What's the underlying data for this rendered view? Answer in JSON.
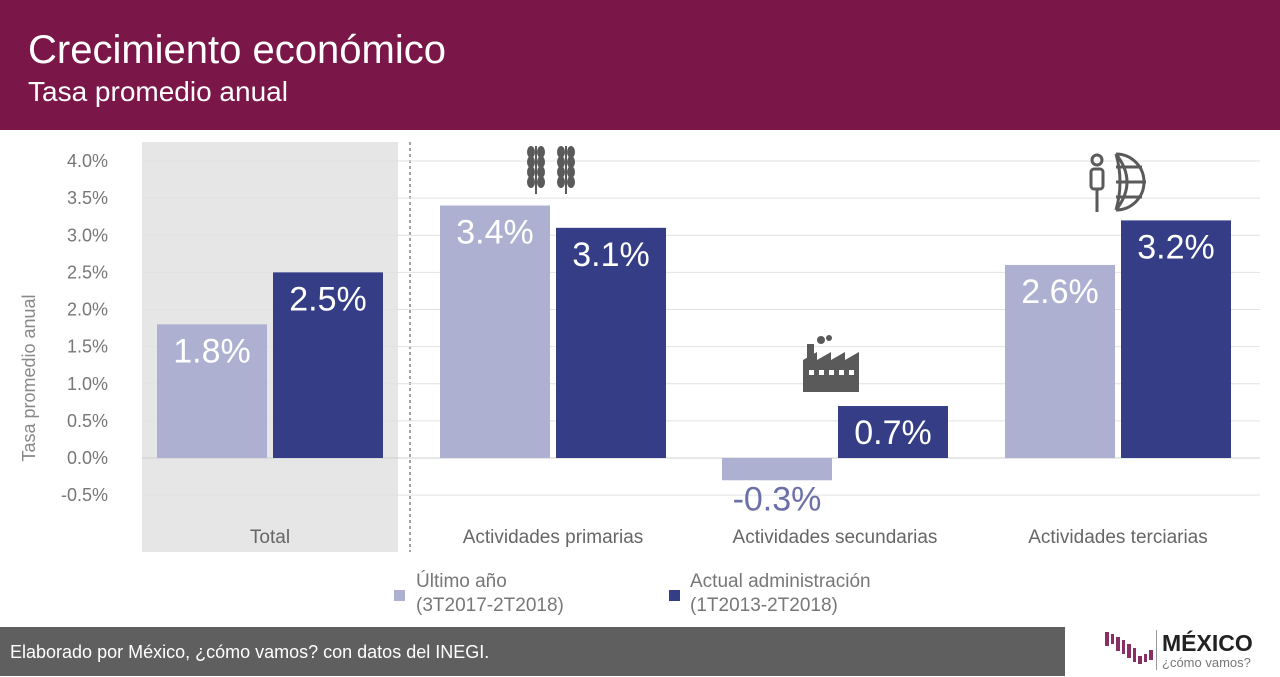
{
  "header": {
    "title": "Crecimiento económico",
    "subtitle": "Tasa promedio anual"
  },
  "footer": {
    "text": "Elaborado por México, ¿cómo vamos? con datos del INEGI."
  },
  "logo": {
    "name": "MÉXICO",
    "tagline": "¿cómo vamos?"
  },
  "colors": {
    "header": "#7b1648",
    "series1": "#adb0d1",
    "series2": "#353d86",
    "highlight_bg": "#e6e6e6",
    "footer": "#5f5f5f"
  },
  "chart_data": {
    "type": "bar",
    "ylabel": "Tasa promedio anual",
    "ylim": [
      -0.5,
      4.0
    ],
    "yticks": [
      "4.0%",
      "3.5%",
      "3.0%",
      "2.5%",
      "2.0%",
      "1.5%",
      "1.0%",
      "0.5%",
      "0.0%",
      "-0.5%"
    ],
    "categories": [
      "Total",
      "Actividades primarias",
      "Actividades secundarias",
      "Actividades terciarias"
    ],
    "category_icons": [
      "",
      "wheat-icon",
      "factory-icon",
      "person-globe-icon"
    ],
    "grid": true,
    "legend_placement": "bottom",
    "series": [
      {
        "name": "Último año (3T2017-2T2018)",
        "legend_line1": "Último año",
        "legend_line2": "(3T2017-2T2018)",
        "values": [
          1.8,
          3.4,
          -0.3,
          2.6
        ],
        "labels": [
          "1.8%",
          "3.4%",
          "-0.3%",
          "2.6%"
        ]
      },
      {
        "name": "Actual administración (1T2013-2T2018)",
        "legend_line1": "Actual administración",
        "legend_line2": "(1T2013-2T2018)",
        "values": [
          2.5,
          3.1,
          0.7,
          3.2
        ],
        "labels": [
          "2.5%",
          "3.1%",
          "0.7%",
          "3.2%"
        ]
      }
    ]
  }
}
